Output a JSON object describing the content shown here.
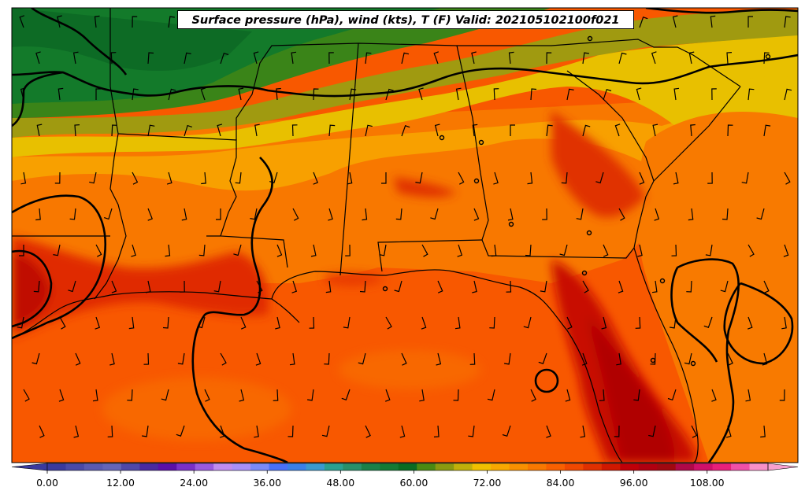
{
  "title": "Surface pressure (hPa), wind (kts), T (F) Valid: 202105102100f021",
  "colorbar": {
    "tick_labels": [
      "0.00",
      "12.00",
      "24.00",
      "36.00",
      "48.00",
      "60.00",
      "72.00",
      "84.00",
      "96.00",
      "108.00"
    ],
    "colors": [
      "#3a3a9e",
      "#4a4aa8",
      "#5a5ab2",
      "#6565b8",
      "#5048a8",
      "#4a2aa0",
      "#5a10a8",
      "#7a30c8",
      "#9a5ae0",
      "#c08cf0",
      "#a890f8",
      "#7a8af8",
      "#4a70f8",
      "#3a80e8",
      "#3a9ad0",
      "#2aa090",
      "#28906a",
      "#1a8048",
      "#137a34",
      "#0a6c22",
      "#4a8a12",
      "#8a9a10",
      "#c0b00a",
      "#f0c000",
      "#f8a800",
      "#f89000",
      "#f87800",
      "#f86000",
      "#f04800",
      "#e03000",
      "#d01800",
      "#c00008",
      "#b00010",
      "#a00810",
      "#b00848",
      "#d0106a",
      "#e8207a",
      "#f050a8",
      "#f890c8"
    ],
    "extend": "both"
  },
  "colors": {
    "deep_green": "#0d6b25",
    "green": "#2e7d1a",
    "olive": "#9a9a10",
    "yellow": "#e8c000",
    "orange_light": "#f8a000",
    "orange": "#f87a00",
    "orange_red": "#f85400",
    "red": "#d81a00",
    "dark_red": "#b00800",
    "ocean": "#f85a00"
  }
}
